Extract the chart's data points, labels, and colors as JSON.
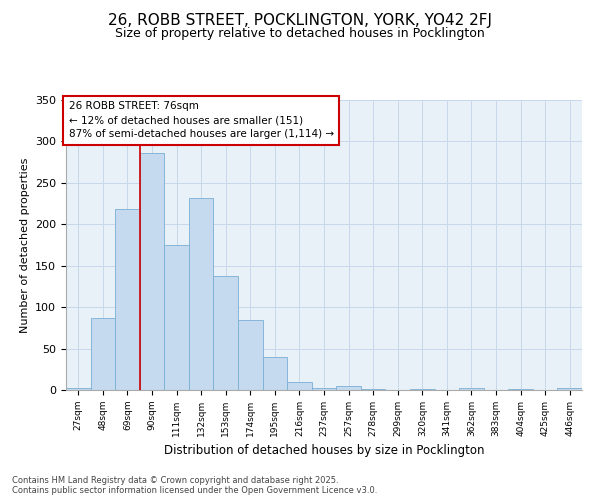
{
  "title": "26, ROBB STREET, POCKLINGTON, YORK, YO42 2FJ",
  "subtitle": "Size of property relative to detached houses in Pocklington",
  "xlabel": "Distribution of detached houses by size in Pocklington",
  "ylabel": "Number of detached properties",
  "categories": [
    "27sqm",
    "48sqm",
    "69sqm",
    "90sqm",
    "111sqm",
    "132sqm",
    "153sqm",
    "174sqm",
    "195sqm",
    "216sqm",
    "237sqm",
    "257sqm",
    "278sqm",
    "299sqm",
    "320sqm",
    "341sqm",
    "362sqm",
    "383sqm",
    "404sqm",
    "425sqm",
    "446sqm"
  ],
  "values": [
    2,
    87,
    218,
    286,
    175,
    232,
    138,
    85,
    40,
    10,
    2,
    5,
    1,
    0,
    1,
    0,
    3,
    0,
    1,
    0,
    2
  ],
  "bar_color": "#c5d9ef",
  "bar_edge_color": "#7aafd4",
  "grid_color": "#c8d8ea",
  "background_color": "#e8f0f8",
  "vline_x_idx": 2,
  "vline_color": "#cc0000",
  "annotation_line1": "26 ROBB STREET: 76sqm",
  "annotation_line2": "← 12% of detached houses are smaller (151)",
  "annotation_line3": "87% of semi-detached houses are larger (1,114) →",
  "annotation_box_color": "#ffffff",
  "annotation_box_edge": "#cc0000",
  "footer": "Contains HM Land Registry data © Crown copyright and database right 2025.\nContains public sector information licensed under the Open Government Licence v3.0.",
  "ylim": [
    0,
    350
  ],
  "yticks": [
    0,
    50,
    100,
    150,
    200,
    250,
    300,
    350
  ]
}
